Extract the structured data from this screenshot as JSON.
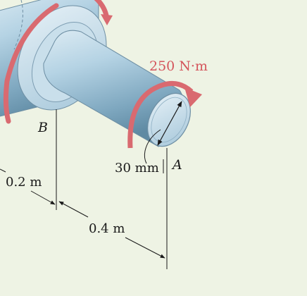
{
  "labels": {
    "torque": "250 N·m",
    "point_b": "B",
    "point_a": "A",
    "diameter": "30 mm",
    "dim_1": "0.2 m",
    "dim_2": "0.4 m"
  },
  "colors": {
    "background": "#eef3e4",
    "shaft": "#a9c9dd",
    "torque_arrow": "#d96a70",
    "line": "#1a1a1a"
  }
}
